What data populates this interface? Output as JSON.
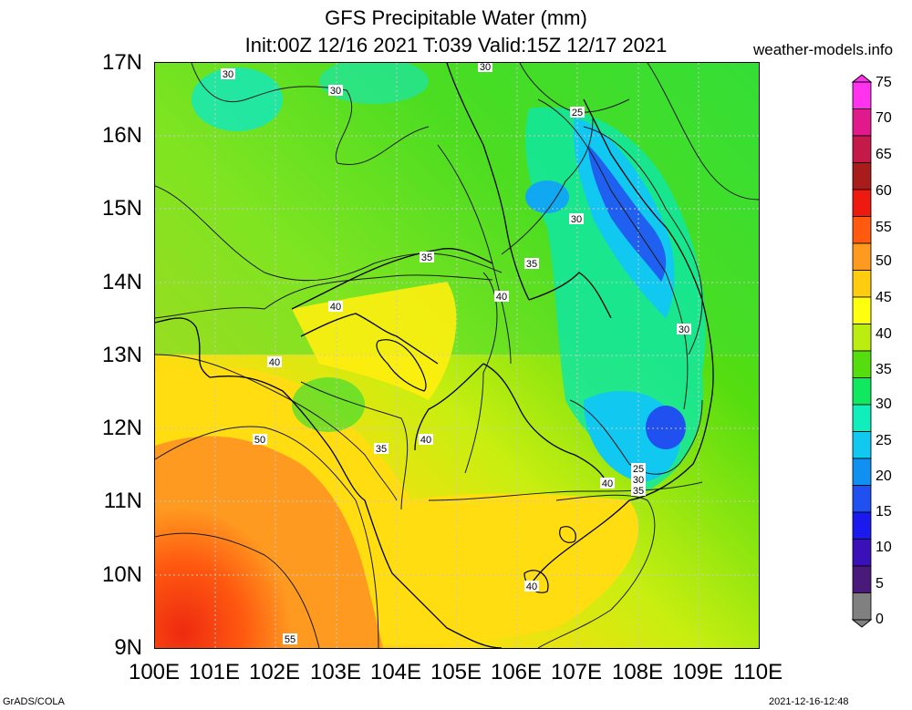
{
  "title": {
    "line1": "GFS Precipitable Water (mm)",
    "line2": "Init:00Z 12/16 2021 T:039 Valid:15Z 12/17 2021"
  },
  "site": "weather-models.info",
  "footer": {
    "left": "GrADS/COLA",
    "right": "2021-12-16-12:48"
  },
  "map": {
    "lat_labels": [
      "17N",
      "16N",
      "15N",
      "14N",
      "13N",
      "12N",
      "11N",
      "10N",
      "9N"
    ],
    "lon_labels": [
      "100E",
      "101E",
      "102E",
      "103E",
      "104E",
      "105E",
      "106E",
      "107E",
      "108E",
      "109E",
      "110E"
    ],
    "contour_labels": [
      "30",
      "30",
      "30",
      "25",
      "30",
      "35",
      "35",
      "40",
      "40",
      "40",
      "35",
      "40",
      "50",
      "25",
      "30",
      "30",
      "35",
      "40",
      "40",
      "55"
    ]
  },
  "colorbar": {
    "labels": [
      "75",
      "70",
      "65",
      "60",
      "55",
      "50",
      "45",
      "40",
      "35",
      "30",
      "25",
      "20",
      "15",
      "10",
      "5",
      "0"
    ],
    "colors": [
      "#ff33ee",
      "#e01a8c",
      "#c41a4a",
      "#a81c1c",
      "#ee1a10",
      "#ff5a10",
      "#ff9a20",
      "#ffcc10",
      "#ffff10",
      "#bbee10",
      "#55dd10",
      "#10e860",
      "#10eebb",
      "#10c8f0",
      "#1090f0",
      "#2050f0",
      "#1a1aee",
      "#3a10b8",
      "#4a1a7a",
      "#808080"
    ]
  }
}
